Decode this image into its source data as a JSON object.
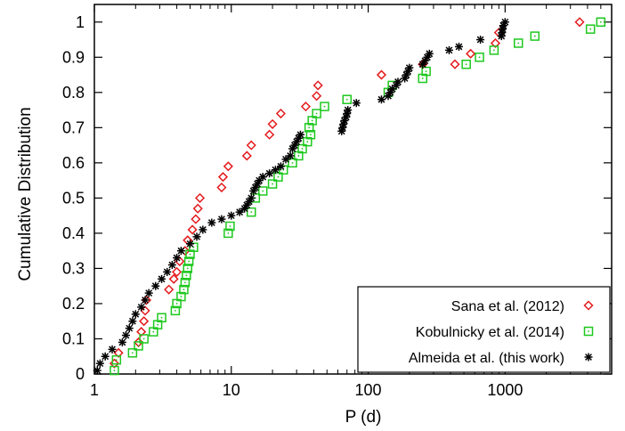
{
  "chart_data": {
    "type": "scatter",
    "xscale": "log",
    "xlabel": "P (d)",
    "ylabel": "Cumulative Distribution",
    "xlim": [
      1,
      6000
    ],
    "ylim": [
      0,
      1.05
    ],
    "x_ticks": [
      1,
      10,
      100,
      1000
    ],
    "x_tick_labels": [
      "1",
      "10",
      "100",
      "1000"
    ],
    "y_ticks": [
      0,
      0.1,
      0.2,
      0.3,
      0.4,
      0.5,
      0.6,
      0.7,
      0.8,
      0.9,
      1
    ],
    "y_tick_labels": [
      "0",
      "0.1",
      "0.2",
      "0.3",
      "0.4",
      "0.5",
      "0.6",
      "0.7",
      "0.8",
      "0.9",
      "1"
    ],
    "grid": false,
    "legend_position": "bottom-right",
    "series": [
      {
        "name": "Sana et al. (2012)",
        "marker": "diamond",
        "color": "#e41a1c",
        "points": [
          [
            1.4,
            0.03
          ],
          [
            1.5,
            0.06
          ],
          [
            2.1,
            0.09
          ],
          [
            2.2,
            0.12
          ],
          [
            2.3,
            0.15
          ],
          [
            2.35,
            0.18
          ],
          [
            2.4,
            0.21
          ],
          [
            3.5,
            0.24
          ],
          [
            3.8,
            0.27
          ],
          [
            4.0,
            0.29
          ],
          [
            4.2,
            0.32
          ],
          [
            4.6,
            0.35
          ],
          [
            4.8,
            0.38
          ],
          [
            5.2,
            0.41
          ],
          [
            5.5,
            0.44
          ],
          [
            5.7,
            0.47
          ],
          [
            5.9,
            0.5
          ],
          [
            8.5,
            0.53
          ],
          [
            8.7,
            0.56
          ],
          [
            9.5,
            0.59
          ],
          [
            13.0,
            0.62
          ],
          [
            14.0,
            0.65
          ],
          [
            19.0,
            0.68
          ],
          [
            20.0,
            0.71
          ],
          [
            23.0,
            0.74
          ],
          [
            35.0,
            0.76
          ],
          [
            42.0,
            0.79
          ],
          [
            43.0,
            0.82
          ],
          [
            125.0,
            0.85
          ],
          [
            250.0,
            0.88
          ],
          [
            430.0,
            0.88
          ],
          [
            560.0,
            0.91
          ],
          [
            850.0,
            0.94
          ],
          [
            900.0,
            0.97
          ],
          [
            3500.0,
            1.0
          ]
        ]
      },
      {
        "name": "Kobulnicky et al. (2014)",
        "marker": "square",
        "color": "#1ec81e",
        "points": [
          [
            1.4,
            0.01
          ],
          [
            1.45,
            0.04
          ],
          [
            1.9,
            0.06
          ],
          [
            2.1,
            0.08
          ],
          [
            2.3,
            0.1
          ],
          [
            2.7,
            0.12
          ],
          [
            2.9,
            0.14
          ],
          [
            3.1,
            0.16
          ],
          [
            3.9,
            0.18
          ],
          [
            4.0,
            0.2
          ],
          [
            4.3,
            0.22
          ],
          [
            4.5,
            0.24
          ],
          [
            4.6,
            0.26
          ],
          [
            4.7,
            0.28
          ],
          [
            4.8,
            0.3
          ],
          [
            4.9,
            0.32
          ],
          [
            5.0,
            0.34
          ],
          [
            5.3,
            0.36
          ],
          [
            9.5,
            0.4
          ],
          [
            9.8,
            0.42
          ],
          [
            14.0,
            0.46
          ],
          [
            15.0,
            0.5
          ],
          [
            17.0,
            0.52
          ],
          [
            20.0,
            0.54
          ],
          [
            22.0,
            0.56
          ],
          [
            24.0,
            0.58
          ],
          [
            28.0,
            0.6
          ],
          [
            31.0,
            0.62
          ],
          [
            33.0,
            0.64
          ],
          [
            36.0,
            0.66
          ],
          [
            38.0,
            0.68
          ],
          [
            37.0,
            0.7
          ],
          [
            39.0,
            0.72
          ],
          [
            42.0,
            0.74
          ],
          [
            48.0,
            0.76
          ],
          [
            70.0,
            0.78
          ],
          [
            140.0,
            0.8
          ],
          [
            150.0,
            0.82
          ],
          [
            250.0,
            0.84
          ],
          [
            265.0,
            0.86
          ],
          [
            520.0,
            0.88
          ],
          [
            650.0,
            0.9
          ],
          [
            830.0,
            0.92
          ],
          [
            1250.0,
            0.94
          ],
          [
            1650.0,
            0.96
          ],
          [
            4200.0,
            0.98
          ],
          [
            5000.0,
            1.0
          ]
        ]
      },
      {
        "name": "Almeida et al. (this work)",
        "marker": "asterisk",
        "color": "#000000",
        "points": [
          [
            1.05,
            0.01
          ],
          [
            1.1,
            0.03
          ],
          [
            1.2,
            0.05
          ],
          [
            1.35,
            0.07
          ],
          [
            1.6,
            0.09
          ],
          [
            1.7,
            0.11
          ],
          [
            1.8,
            0.13
          ],
          [
            1.9,
            0.15
          ],
          [
            2.0,
            0.17
          ],
          [
            2.2,
            0.19
          ],
          [
            2.35,
            0.21
          ],
          [
            2.5,
            0.23
          ],
          [
            2.8,
            0.25
          ],
          [
            3.1,
            0.27
          ],
          [
            3.4,
            0.29
          ],
          [
            3.7,
            0.31
          ],
          [
            4.0,
            0.33
          ],
          [
            4.3,
            0.35
          ],
          [
            5.0,
            0.37
          ],
          [
            5.6,
            0.39
          ],
          [
            6.2,
            0.41
          ],
          [
            7.2,
            0.43
          ],
          [
            8.5,
            0.44
          ],
          [
            10.0,
            0.45
          ],
          [
            11.5,
            0.46
          ],
          [
            12.5,
            0.47
          ],
          [
            13.0,
            0.48
          ],
          [
            13.5,
            0.49
          ],
          [
            14.0,
            0.5
          ],
          [
            14.5,
            0.52
          ],
          [
            15.0,
            0.53
          ],
          [
            15.5,
            0.54
          ],
          [
            16.0,
            0.55
          ],
          [
            17.0,
            0.56
          ],
          [
            19.0,
            0.57
          ],
          [
            21.0,
            0.58
          ],
          [
            23.0,
            0.59
          ],
          [
            25.0,
            0.61
          ],
          [
            27.0,
            0.62
          ],
          [
            28.0,
            0.64
          ],
          [
            29.0,
            0.65
          ],
          [
            30.0,
            0.66
          ],
          [
            31.0,
            0.67
          ],
          [
            32.0,
            0.68
          ],
          [
            64.0,
            0.69
          ],
          [
            65.0,
            0.7
          ],
          [
            66.0,
            0.71
          ],
          [
            67.0,
            0.72
          ],
          [
            69.0,
            0.73
          ],
          [
            70.0,
            0.74
          ],
          [
            71.0,
            0.75
          ],
          [
            82.0,
            0.77
          ],
          [
            125.0,
            0.78
          ],
          [
            140.0,
            0.79
          ],
          [
            145.0,
            0.8
          ],
          [
            150.0,
            0.81
          ],
          [
            160.0,
            0.82
          ],
          [
            165.0,
            0.83
          ],
          [
            185.0,
            0.84
          ],
          [
            190.0,
            0.85
          ],
          [
            195.0,
            0.86
          ],
          [
            200.0,
            0.87
          ],
          [
            250.0,
            0.88
          ],
          [
            260.0,
            0.89
          ],
          [
            270.0,
            0.9
          ],
          [
            280.0,
            0.91
          ],
          [
            390.0,
            0.92
          ],
          [
            460.0,
            0.93
          ],
          [
            660.0,
            0.95
          ],
          [
            940.0,
            0.96
          ],
          [
            950.0,
            0.97
          ],
          [
            960.0,
            0.98
          ],
          [
            970.0,
            0.99
          ],
          [
            1000.0,
            1.0
          ]
        ]
      }
    ]
  }
}
